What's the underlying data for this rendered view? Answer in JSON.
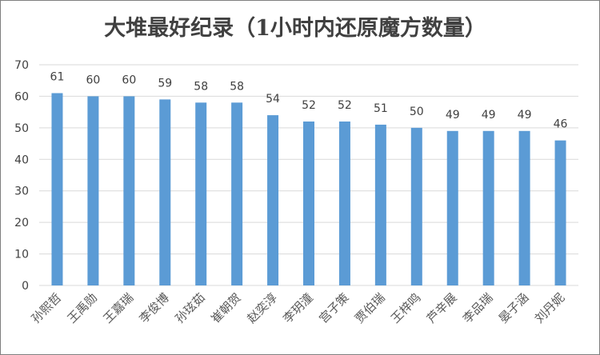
{
  "chart_data": {
    "type": "bar",
    "title": "大堆最好纪录（1小时内还原魔方数量）",
    "xlabel": "",
    "ylabel": "",
    "categories": [
      "孙熙哲",
      "王禹勋",
      "王嘉瑞",
      "李俊博",
      "孙玹茹",
      "崔朝贺",
      "赵奕淳",
      "李玥潼",
      "宫子策",
      "贾伯瑞",
      "王梓鸣",
      "芦辛展",
      "李品瑞",
      "晏子涵",
      "刘丹妮"
    ],
    "series": [
      {
        "values": [
          61,
          60,
          60,
          59,
          58,
          58,
          54,
          52,
          52,
          51,
          50,
          49,
          49,
          49,
          46
        ]
      }
    ],
    "ylim": [
      0,
      70
    ],
    "yticks": [
      0,
      10,
      20,
      30,
      40,
      50,
      60,
      70
    ],
    "grid": true,
    "legend": "none",
    "data_labels": true,
    "colors": {
      "bar": "#5b9bd5",
      "grid": "#d9d9d9",
      "text": "#404040",
      "frame": "#7f7f7f"
    }
  }
}
